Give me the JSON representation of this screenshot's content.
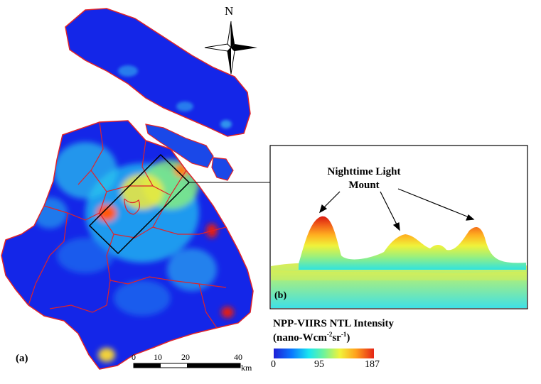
{
  "map": {
    "panel_a_label": "(a)",
    "panel_b_label": "(b)",
    "north_label": "N"
  },
  "inset": {
    "annotation_line1": "Nighttime Light",
    "annotation_line2": "Mount"
  },
  "legend": {
    "title_line1": "NPP-VIIRS NTL Intensity",
    "title_line2_main": "(nano-Wcm",
    "title_line2_sup1": "-2",
    "title_line2_mid": "sr",
    "title_line2_sup2": "-1",
    "title_line2_end": ")",
    "min_label": "0",
    "mid_label": "95",
    "max_label": "187",
    "colors": [
      "#1f1fd6",
      "#0a78ff",
      "#19e6f0",
      "#6ff39a",
      "#f1f33b",
      "#ffa11c",
      "#e52416"
    ]
  },
  "scale_bar": {
    "ticks": [
      "0",
      "10",
      "20",
      "40"
    ],
    "unit": "km"
  }
}
